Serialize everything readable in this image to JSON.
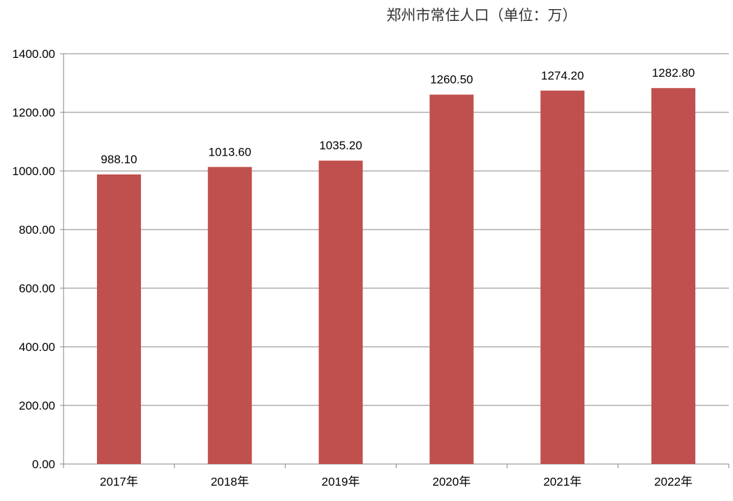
{
  "chart_data": {
    "type": "bar",
    "title": "郑州市常住人口（单位：万）",
    "categories": [
      "2017年",
      "2018年",
      "2019年",
      "2020年",
      "2021年",
      "2022年"
    ],
    "values": [
      988.1,
      1013.6,
      1035.2,
      1260.5,
      1274.2,
      1282.8
    ],
    "data_labels": [
      "988.10",
      "1013.60",
      "1035.20",
      "1260.50",
      "1274.20",
      "1282.80"
    ],
    "ylim": [
      0,
      1400
    ],
    "yticks": [
      "0.00",
      "200.00",
      "400.00",
      "600.00",
      "800.00",
      "1000.00",
      "1200.00",
      "1400.00"
    ],
    "grid": true,
    "legend": "none",
    "bar_color": "#C0504D"
  }
}
